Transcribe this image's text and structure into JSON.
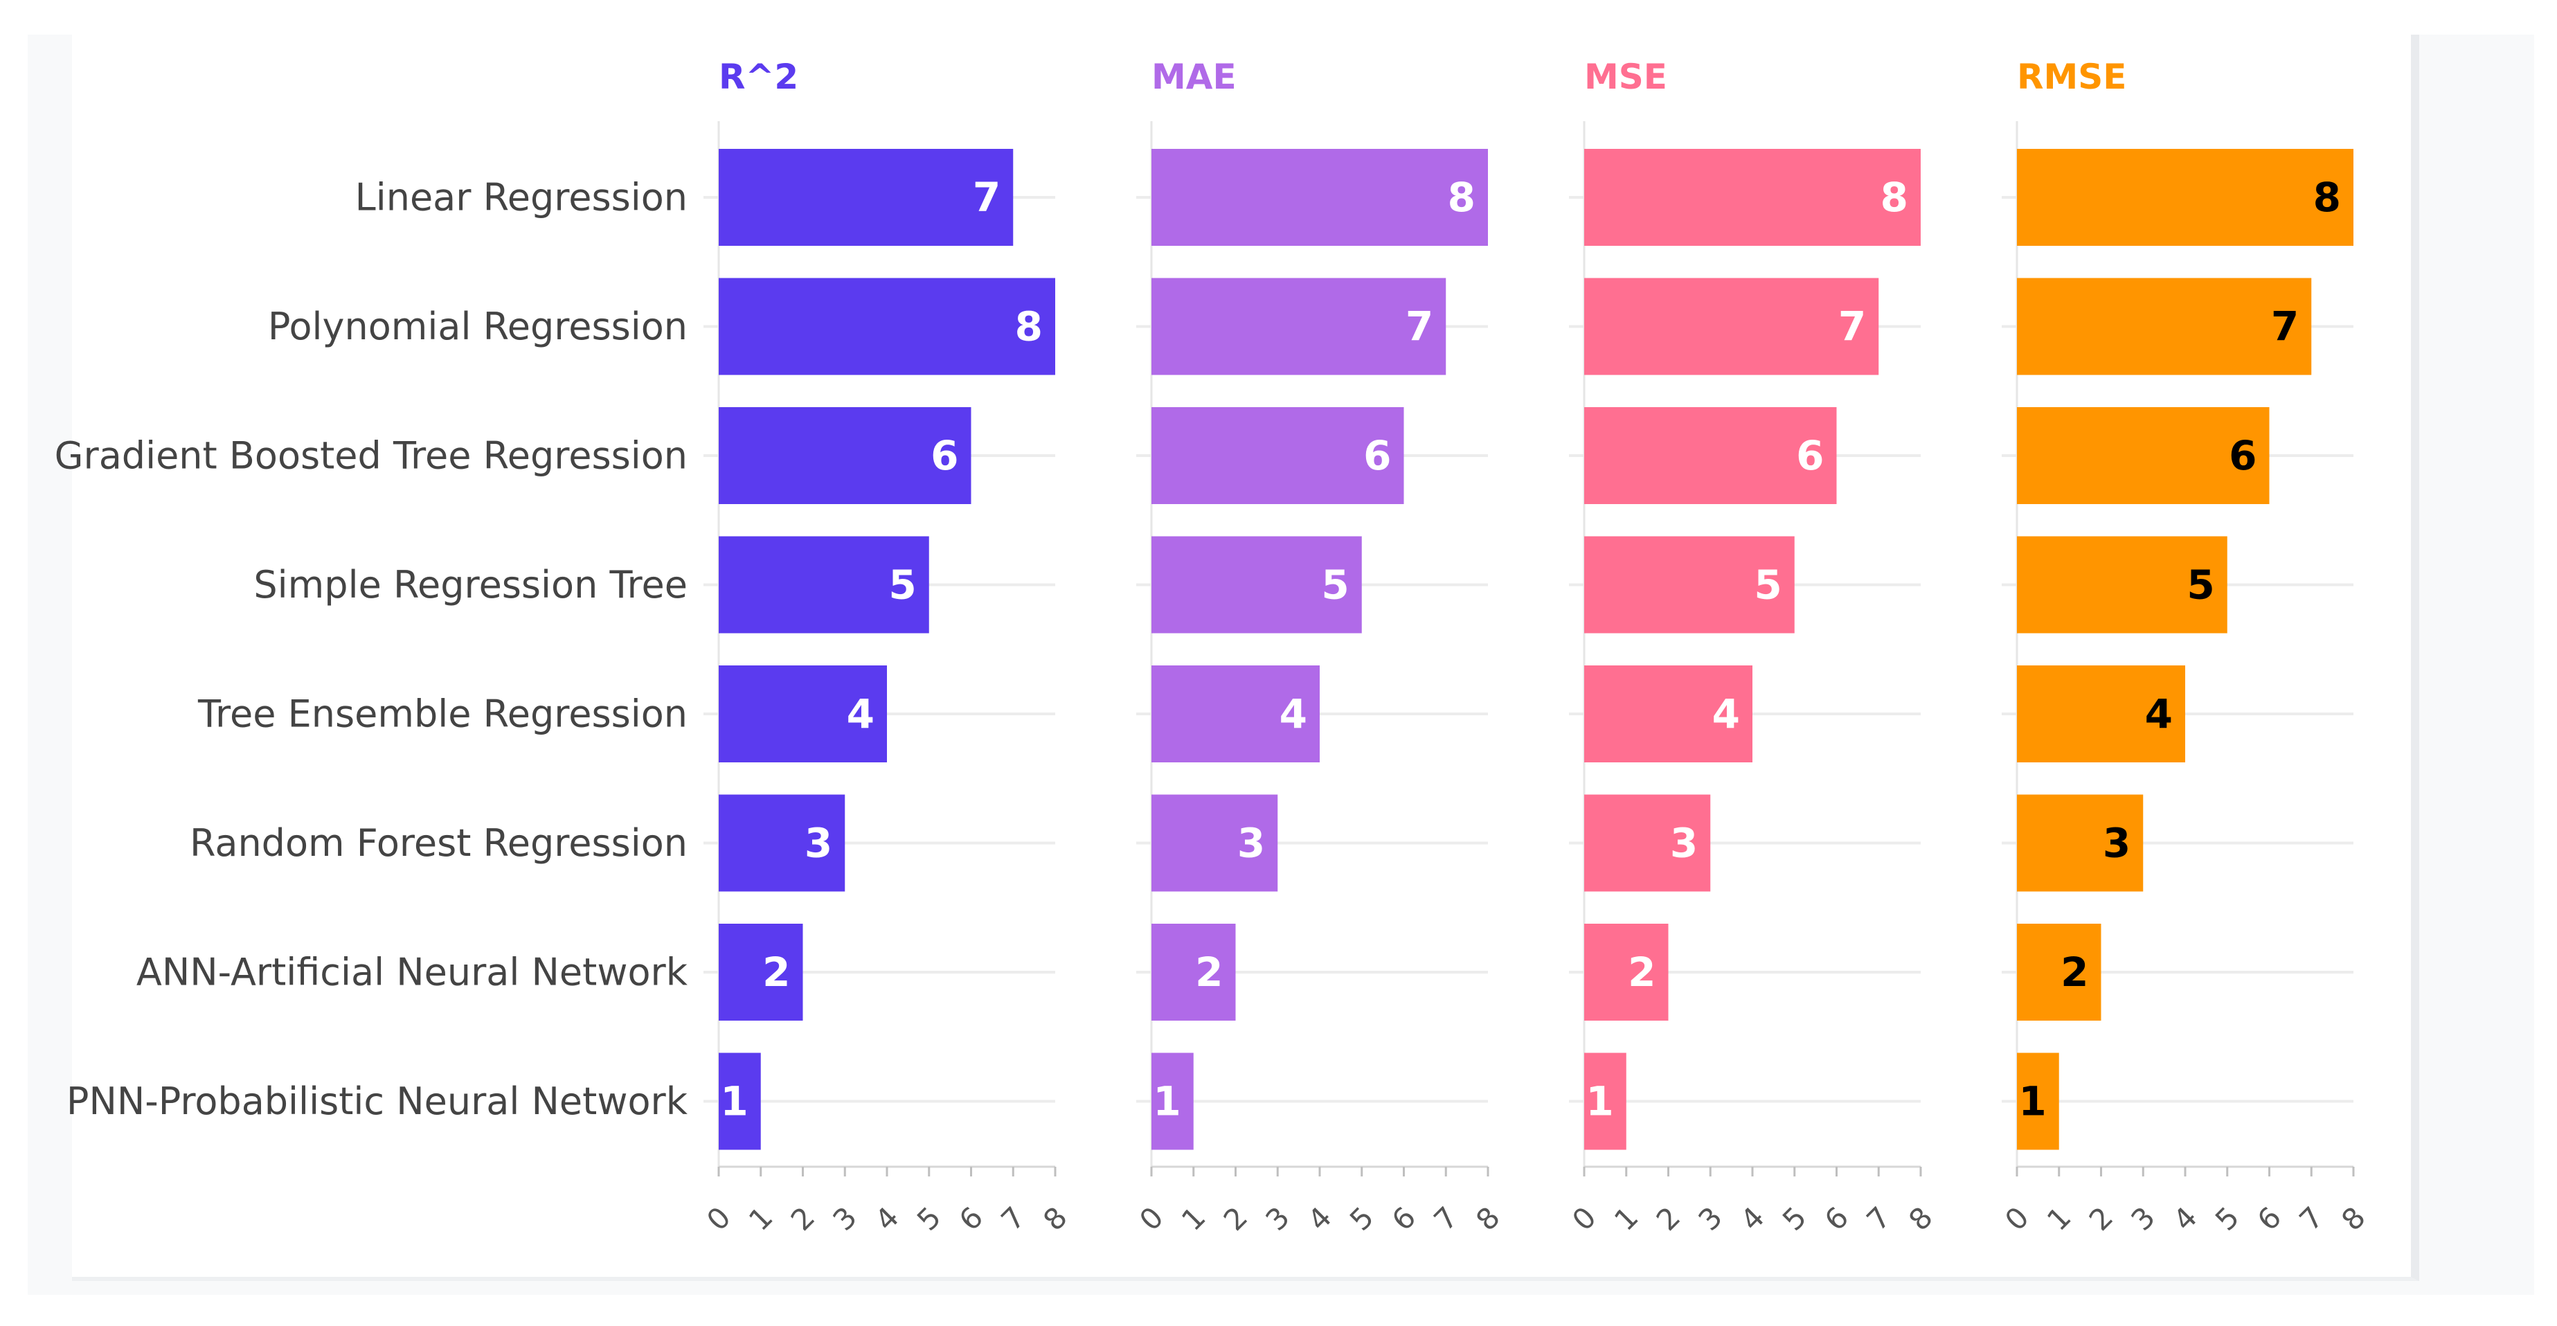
{
  "chart_data": {
    "type": "bar",
    "orientation": "horizontal",
    "categories": [
      "Linear Regression",
      "Polynomial Regression",
      "Gradient Boosted Tree Regression",
      "Simple Regression Tree",
      "Tree Ensemble Regression",
      "Random Forest Regression",
      "ANN-Artificial Neural Network",
      "PNN-Probabilistic Neural Network"
    ],
    "series": [
      {
        "name": "R^2",
        "color": "#5b3bef",
        "label_color": "#ffffff",
        "values": [
          7,
          8,
          6,
          5,
          4,
          3,
          2,
          1
        ]
      },
      {
        "name": "MAE",
        "color": "#b06ae8",
        "label_color": "#ffffff",
        "values": [
          8,
          7,
          6,
          5,
          4,
          3,
          2,
          1
        ]
      },
      {
        "name": "MSE",
        "color": "#ff6f91",
        "label_color": "#ffffff",
        "values": [
          8,
          7,
          6,
          5,
          4,
          3,
          2,
          1
        ]
      },
      {
        "name": "RMSE",
        "color": "#ff9500",
        "label_color": "#000000",
        "values": [
          8,
          7,
          6,
          5,
          4,
          3,
          2,
          1
        ]
      }
    ],
    "xlim": [
      0,
      8
    ],
    "x_ticks": [
      "0",
      "1",
      "2",
      "3",
      "4",
      "5",
      "6",
      "7",
      "8"
    ],
    "grid": true,
    "title_color_by_series": true
  }
}
